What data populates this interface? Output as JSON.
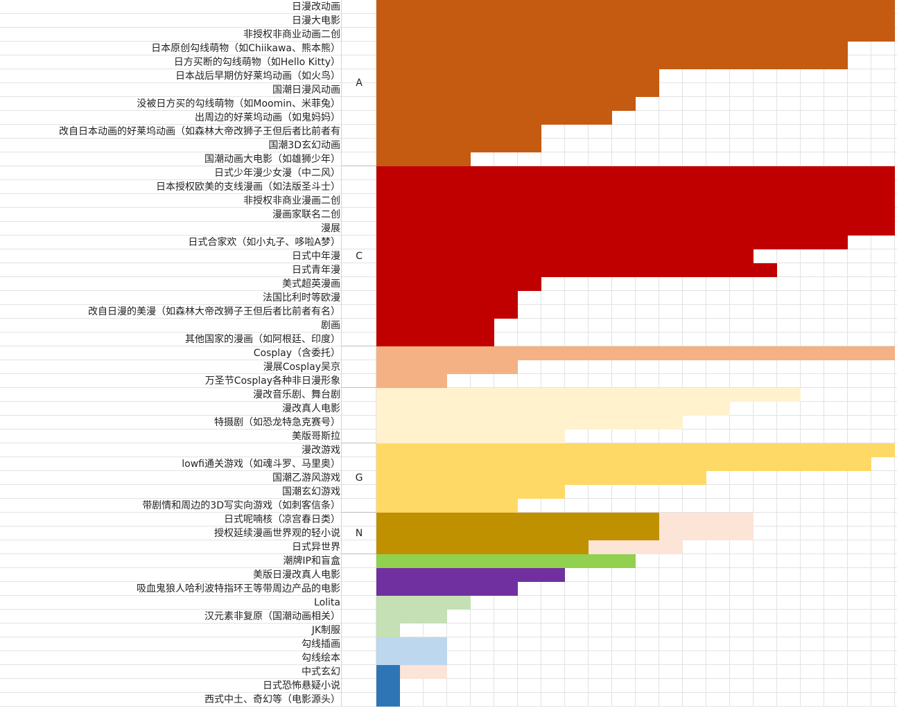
{
  "chart_data": {
    "type": "bar",
    "max_value": 22,
    "grid": true,
    "groups": [
      {
        "label": "A",
        "first_row": 0,
        "last_row": 11
      },
      {
        "label": "C",
        "first_row": 12,
        "last_row": 24
      },
      {
        "label": "",
        "first_row": 25,
        "last_row": 27
      },
      {
        "label": "",
        "first_row": 28,
        "last_row": 31
      },
      {
        "label": "G",
        "first_row": 32,
        "last_row": 36
      },
      {
        "label": "N",
        "first_row": 37,
        "last_row": 39
      }
    ],
    "rows": [
      {
        "label": "日漫改动画",
        "value": 22,
        "color": "#C55A11"
      },
      {
        "label": "日漫大电影",
        "value": 22,
        "color": "#C55A11"
      },
      {
        "label": "非授权非商业动画二创",
        "value": 22,
        "color": "#C55A11"
      },
      {
        "label": "日本原创勾线萌物（如Chiikawa、熊本熊）",
        "value": 20,
        "color": "#C55A11"
      },
      {
        "label": "日方买断的勾线萌物（如Hello Kitty）",
        "value": 20,
        "color": "#C55A11"
      },
      {
        "label": "日本战后早期仿好莱坞动画（如火鸟）",
        "value": 12,
        "color": "#C55A11"
      },
      {
        "label": "国潮日漫风动画",
        "value": 12,
        "color": "#C55A11"
      },
      {
        "label": "没被日方买的勾线萌物（如Moomin、米菲兔）",
        "value": 11,
        "color": "#C55A11"
      },
      {
        "label": "出周边的好莱坞动画（如鬼妈妈）",
        "value": 10,
        "color": "#C55A11"
      },
      {
        "label": "改自日本动画的好莱坞动画（如森林大帝改狮子王但后者比前者有",
        "value": 7,
        "color": "#C55A11"
      },
      {
        "label": "国潮3D玄幻动画",
        "value": 7,
        "color": "#C55A11"
      },
      {
        "label": "国潮动画大电影（如雄狮少年）",
        "value": 4,
        "color": "#C55A11"
      },
      {
        "label": "日式少年漫少女漫（中二风）",
        "value": 22,
        "color": "#C00000"
      },
      {
        "label": "日本授权欧美的支线漫画（如法版圣斗士）",
        "value": 22,
        "color": "#C00000"
      },
      {
        "label": "非授权非商业漫画二创",
        "value": 22,
        "color": "#C00000"
      },
      {
        "label": "漫画家联名二创",
        "value": 22,
        "color": "#C00000"
      },
      {
        "label": "漫展",
        "value": 22,
        "color": "#C00000"
      },
      {
        "label": "日式合家欢（如小丸子、哆啦A梦）",
        "value": 20,
        "color": "#C00000"
      },
      {
        "label": "日式中年漫",
        "value": 16,
        "color": "#C00000"
      },
      {
        "label": "日式青年漫",
        "value": 17,
        "color": "#C00000"
      },
      {
        "label": "美式超英漫画",
        "value": 7,
        "color": "#C00000"
      },
      {
        "label": "法国比利时等欧漫",
        "value": 6,
        "color": "#C00000"
      },
      {
        "label": "改自日漫的美漫（如森林大帝改狮子王但后者比前者有名）",
        "value": 6,
        "color": "#C00000"
      },
      {
        "label": "剧画",
        "value": 5,
        "color": "#C00000"
      },
      {
        "label": "其他国家的漫画（如阿根廷、印度）",
        "value": 5,
        "color": "#C00000"
      },
      {
        "label": "Cosplay（含委托）",
        "value": 22,
        "color": "#F4B183"
      },
      {
        "label": "漫展Cosplay吴京",
        "value": 6,
        "color": "#F4B183"
      },
      {
        "label": "万圣节Cosplay各种非日漫形象",
        "value": 3,
        "color": "#F4B183"
      },
      {
        "label": "漫改音乐剧、舞台剧",
        "value": 18,
        "color": "#FFF2CC"
      },
      {
        "label": "漫改真人电影",
        "value": 15,
        "color": "#FFF2CC"
      },
      {
        "label": "特摄剧（如恐龙特急克赛号）",
        "value": 13,
        "color": "#FFF2CC"
      },
      {
        "label": "美版哥斯拉",
        "value": 8,
        "color": "#FFF2CC"
      },
      {
        "label": "漫改游戏",
        "value": 22,
        "color": "#FFD966"
      },
      {
        "label": "lowfi通关游戏（如魂斗罗、马里奥）",
        "value": 21,
        "color": "#FFD966"
      },
      {
        "label": "国潮乙游风游戏",
        "value": 14,
        "color": "#FFD966"
      },
      {
        "label": "国潮玄幻游戏",
        "value": 8,
        "color": "#FFD966"
      },
      {
        "label": "带剧情和周边的3D写实向游戏（如刺客信条）",
        "value": 6,
        "color": "#FFD966"
      },
      {
        "label": "日式呢喃核（凉宫春日类）",
        "value": 12,
        "color": "#BF9000",
        "extra": 4,
        "extra_color": "#FCE4D6"
      },
      {
        "label": "授权延续漫画世界观的轻小说",
        "value": 12,
        "color": "#BF9000",
        "extra": 4,
        "extra_color": "#FCE4D6"
      },
      {
        "label": "日式异世界",
        "value": 9,
        "color": "#BF9000",
        "extra": 4,
        "extra_color": "#FCE4D6"
      },
      {
        "label": "潮牌IP和盲盒",
        "value": 11,
        "color": "#92D050"
      },
      {
        "label": "美版日漫改真人电影",
        "value": 8,
        "color": "#7030A0"
      },
      {
        "label": "吸血鬼狼人哈利波特指环王等带周边产品的电影",
        "value": 6,
        "color": "#7030A0"
      },
      {
        "label": "Lolita",
        "value": 4,
        "color": "#C5E0B4"
      },
      {
        "label": "汉元素非复原（国潮动画相关）",
        "value": 3,
        "color": "#C5E0B4"
      },
      {
        "label": "JK制服",
        "value": 1,
        "color": "#C5E0B4"
      },
      {
        "label": "勾线插画",
        "value": 3,
        "color": "#BDD7EE"
      },
      {
        "label": "勾线绘本",
        "value": 3,
        "color": "#BDD7EE"
      },
      {
        "label": "中式玄幻",
        "value": 1,
        "color": "#2E75B6",
        "extra": 2,
        "extra_color": "#FCE4D6"
      },
      {
        "label": "日式恐怖悬疑小说",
        "value": 1,
        "color": "#2E75B6"
      },
      {
        "label": "西式中土、奇幻等（电影源头）",
        "value": 1,
        "color": "#2E75B6"
      }
    ]
  }
}
